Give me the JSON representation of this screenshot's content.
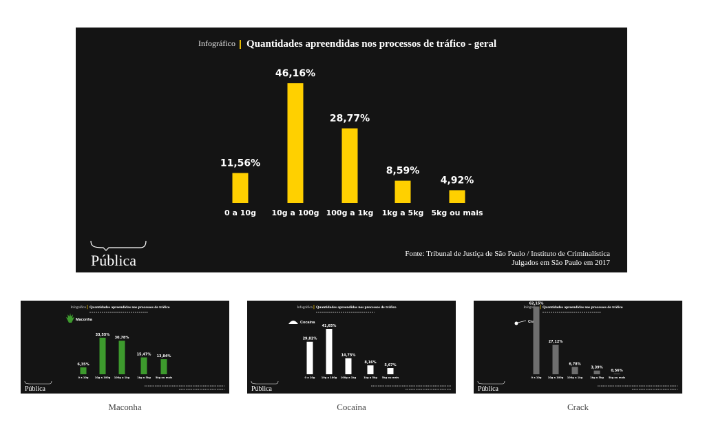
{
  "main": {
    "prefix": "Infográfico",
    "title": "Quantidades apreendidas nos processos de tráfico - geral",
    "source_line1": "Fonte: Tribunal de Justiça de São Paulo / Instituto de Criminalística",
    "source_line2": "Julgados em São Paulo em 2017",
    "logo": "Pública"
  },
  "thumbs": [
    {
      "caption": "Maconha",
      "legend": "Maconha",
      "icon": "leaf-icon"
    },
    {
      "caption": "Cocaína",
      "legend": "Cocaína",
      "icon": "powder-icon"
    },
    {
      "caption": "Crack",
      "legend": "Crack",
      "icon": "pipe-icon"
    }
  ],
  "thumb_common": {
    "prefix": "Infográfico",
    "title": "Quantidades apreendidas nos processos de tráfico",
    "logo": "Pública"
  },
  "colors": {
    "background": "#141414",
    "yellow": "#ffd000",
    "green": "#3d9a2d",
    "white": "#ffffff",
    "gray": "#6e6e6e"
  },
  "chart_data": [
    {
      "type": "bar",
      "title": "Quantidades apreendidas nos processos de tráfico - geral",
      "categories": [
        "0 a 10g",
        "10g a 100g",
        "100g a 1kg",
        "1kg a 5kg",
        "5kg ou mais"
      ],
      "values": [
        11.56,
        46.16,
        28.77,
        8.59,
        4.92
      ],
      "labels": [
        "11,56%",
        "46,16%",
        "28,77%",
        "8,59%",
        "4,92%"
      ],
      "color": "#ffd000"
    },
    {
      "type": "bar",
      "title": "Maconha",
      "categories": [
        "0 a 10g",
        "10g a 100g",
        "100g a 1kg",
        "1kg a 5kg",
        "5kg ou mais"
      ],
      "values": [
        6.35,
        33.55,
        30.78,
        15.47,
        13.84
      ],
      "labels": [
        "6,35%",
        "33,55%",
        "30,78%",
        "15,47%",
        "13,84%"
      ],
      "color": "#3d9a2d"
    },
    {
      "type": "bar",
      "title": "Cocaína",
      "categories": [
        "0 a 10g",
        "10g a 100g",
        "100g a 1kg",
        "1kg a 5kg",
        "5kg ou mais"
      ],
      "values": [
        29.82,
        41.65,
        14.75,
        8.16,
        5.67
      ],
      "labels": [
        "29,82%",
        "41,65%",
        "14,75%",
        "8,16%",
        "5,67%"
      ],
      "color": "#ffffff"
    },
    {
      "type": "bar",
      "title": "Crack",
      "categories": [
        "0 a 10g",
        "10g a 100g",
        "100g a 1kg",
        "1kg a 5kg",
        "5kg ou mais"
      ],
      "values": [
        62.15,
        27.12,
        6.78,
        3.39,
        0.56
      ],
      "labels": [
        "62,15%",
        "27,12%",
        "6,78%",
        "3,39%",
        "0,56%"
      ],
      "color": "#6e6e6e"
    }
  ]
}
